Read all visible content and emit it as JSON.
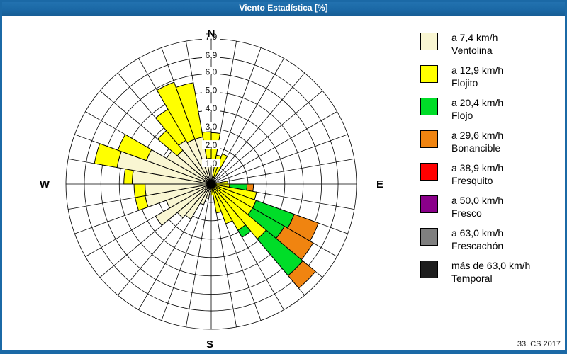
{
  "window": {
    "title": "Viento Estadística [%]",
    "frame_color": "#1B69A6",
    "footer_credit": "33. CS 2017"
  },
  "legend": {
    "items": [
      {
        "key": "ventolina",
        "speed": "a 7,4 km/h",
        "name": "Ventolina",
        "color": "#F9F6D2"
      },
      {
        "key": "flojito",
        "speed": "a 12,9 km/h",
        "name": "Flojito",
        "color": "#FFFF00"
      },
      {
        "key": "flojo",
        "speed": "a 20,4 km/h",
        "name": "Flojo",
        "color": "#00DD28"
      },
      {
        "key": "bonancible",
        "speed": "a 29,6 km/h",
        "name": "Bonancible",
        "color": "#F08410"
      },
      {
        "key": "fresquito",
        "speed": "a 38,9 km/h",
        "name": "Fresquito",
        "color": "#FF0000"
      },
      {
        "key": "fresco",
        "speed": "a 50,0 km/h",
        "name": "Fresco",
        "color": "#8A008A"
      },
      {
        "key": "frescachon",
        "speed": "a 63,0 km/h",
        "name": "Frescachón",
        "color": "#7F7F7F"
      },
      {
        "key": "temporal",
        "speed": "más de 63,0 km/h",
        "name": "Temporal",
        "color": "#1E1E1E"
      }
    ]
  },
  "chart_data": {
    "type": "wind-rose-stacked-polar-bar",
    "title": "Viento Estadística [%]",
    "units": "percent",
    "angle_step_deg": 10,
    "rmax": 7.9,
    "grid": true,
    "radial_ticks": [
      1.0,
      2.0,
      3.0,
      4.0,
      5.0,
      6.0,
      6.9,
      7.9
    ],
    "radial_tick_labels": [
      "1,0",
      "2,0",
      "3,0",
      "4,0",
      "5,0",
      "6,0",
      "6,9",
      "7,9"
    ],
    "compass": {
      "n": "N",
      "e": "E",
      "s": "S",
      "w": "W"
    },
    "stack_order": [
      "ventolina",
      "flojito",
      "flojo",
      "bonancible"
    ],
    "sectors_note": "d = sector start bearing in degrees clockwise from N, 10 deg wide; seg = [ventolina, flojito, flojo, bonancible] segment magnitudes in %",
    "sectors": [
      {
        "d": 0,
        "seg": [
          1.3,
          1.5,
          0,
          0
        ]
      },
      {
        "d": 10,
        "seg": [
          0.4,
          1.2,
          0,
          0
        ]
      },
      {
        "d": 20,
        "seg": [
          0.4,
          1.35,
          0,
          0
        ]
      },
      {
        "d": 30,
        "seg": [
          0,
          0,
          0,
          0
        ]
      },
      {
        "d": 40,
        "seg": [
          0,
          0,
          0,
          0
        ]
      },
      {
        "d": 50,
        "seg": [
          0,
          0,
          0,
          0
        ]
      },
      {
        "d": 60,
        "seg": [
          0,
          0,
          0,
          0
        ]
      },
      {
        "d": 70,
        "seg": [
          0,
          0,
          0,
          0
        ]
      },
      {
        "d": 80,
        "seg": [
          0,
          0.9,
          0,
          0
        ]
      },
      {
        "d": 90,
        "seg": [
          0,
          1.0,
          0.95,
          0.35
        ]
      },
      {
        "d": 100,
        "seg": [
          0,
          2.5,
          0,
          0
        ]
      },
      {
        "d": 110,
        "seg": [
          0,
          2.6,
          2.2,
          1.4
        ]
      },
      {
        "d": 120,
        "seg": [
          0,
          2.6,
          2.0,
          1.8
        ]
      },
      {
        "d": 130,
        "seg": [
          0,
          3.9,
          2.6,
          0.9
        ]
      },
      {
        "d": 140,
        "seg": [
          0,
          2.9,
          0.45,
          0
        ]
      },
      {
        "d": 150,
        "seg": [
          0,
          2.3,
          0,
          0
        ]
      },
      {
        "d": 160,
        "seg": [
          0,
          1.6,
          0,
          0
        ]
      },
      {
        "d": 170,
        "seg": [
          0,
          0.6,
          0,
          0
        ]
      },
      {
        "d": 180,
        "seg": [
          0.4,
          0,
          0,
          0
        ]
      },
      {
        "d": 190,
        "seg": [
          0.8,
          0,
          0,
          0
        ]
      },
      {
        "d": 200,
        "seg": [
          1.2,
          0,
          0,
          0
        ]
      },
      {
        "d": 210,
        "seg": [
          2.2,
          0,
          0,
          0
        ]
      },
      {
        "d": 220,
        "seg": [
          2.4,
          0,
          0,
          0
        ]
      },
      {
        "d": 230,
        "seg": [
          3.5,
          0,
          0,
          0
        ]
      },
      {
        "d": 240,
        "seg": [
          2.6,
          0,
          0,
          0
        ]
      },
      {
        "d": 250,
        "seg": [
          3.65,
          0.55,
          0,
          0
        ]
      },
      {
        "d": 260,
        "seg": [
          3.6,
          0.6,
          0,
          0
        ]
      },
      {
        "d": 270,
        "seg": [
          4.3,
          0.45,
          0,
          0
        ]
      },
      {
        "d": 280,
        "seg": [
          5.2,
          1.25,
          0,
          0
        ]
      },
      {
        "d": 290,
        "seg": [
          3.75,
          1.65,
          0,
          0
        ]
      },
      {
        "d": 300,
        "seg": [
          2.8,
          0,
          0,
          0
        ]
      },
      {
        "d": 310,
        "seg": [
          2.4,
          1.4,
          0,
          0
        ]
      },
      {
        "d": 320,
        "seg": [
          2.75,
          1.95,
          0,
          0
        ]
      },
      {
        "d": 330,
        "seg": [
          2.6,
          3.3,
          0,
          0
        ]
      },
      {
        "d": 340,
        "seg": [
          2.6,
          3.0,
          0,
          0
        ]
      },
      {
        "d": 350,
        "seg": [
          1.4,
          1.45,
          0,
          0
        ]
      }
    ]
  }
}
